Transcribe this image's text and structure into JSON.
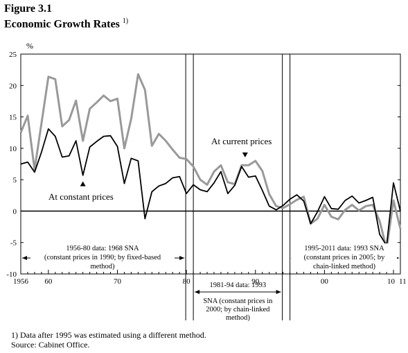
{
  "figure_label": "Figure 3.1",
  "title": "Economic Growth Rates",
  "title_note_marker": "1)",
  "footnote": "1) Data after 1995 was estimated using a different method.",
  "source": "Source:  Cabinet Office.",
  "colors": {
    "constant": "#000000",
    "current": "#999999"
  },
  "chart_data": {
    "type": "line",
    "ylabel": "%",
    "ylim": [
      -10,
      25
    ],
    "xlim": [
      1956,
      2011
    ],
    "y_ticks": [
      25,
      20,
      15,
      10,
      5,
      0,
      -5,
      -10
    ],
    "x_ticks": [
      {
        "year": 1956,
        "label": "1956"
      },
      {
        "year": 1960,
        "label": "60"
      },
      {
        "year": 1970,
        "label": "70"
      },
      {
        "year": 1980,
        "label": "80"
      },
      {
        "year": 1990,
        "label": "90"
      },
      {
        "year": 2000,
        "label": "00"
      },
      {
        "year": 2010,
        "label": "10"
      },
      {
        "year": 2011,
        "label": "11"
      }
    ],
    "x": [
      1956,
      1957,
      1958,
      1959,
      1960,
      1961,
      1962,
      1963,
      1964,
      1965,
      1966,
      1967,
      1968,
      1969,
      1970,
      1971,
      1972,
      1973,
      1974,
      1975,
      1976,
      1977,
      1978,
      1979,
      1980,
      1981,
      1982,
      1983,
      1984,
      1985,
      1986,
      1987,
      1988,
      1989,
      1990,
      1991,
      1992,
      1993,
      1994,
      1995,
      1996,
      1997,
      1998,
      1999,
      2000,
      2001,
      2002,
      2003,
      2004,
      2005,
      2006,
      2007,
      2008,
      2009,
      2010,
      2011
    ],
    "series": [
      {
        "name": "At current prices",
        "color_key": "current",
        "values": [
          12.5,
          15.2,
          6.6,
          14.0,
          21.4,
          21.0,
          13.5,
          14.5,
          17.6,
          11.2,
          16.3,
          17.3,
          18.4,
          17.5,
          17.9,
          10.0,
          14.7,
          21.8,
          19.3,
          10.4,
          12.3,
          11.2,
          9.8,
          8.5,
          8.3,
          7.1,
          5.0,
          4.2,
          6.3,
          7.3,
          4.6,
          4.3,
          7.3,
          7.3,
          8.0,
          6.4,
          2.7,
          0.8,
          0.5,
          1.1,
          1.8,
          2.3,
          -2.0,
          -1.2,
          1.0,
          -0.9,
          -1.3,
          0.2,
          1.0,
          0.1,
          0.8,
          1.0,
          -1.6,
          -6.0,
          1.7,
          -2.8
        ]
      },
      {
        "name": "At constant prices",
        "color_key": "constant",
        "values": [
          7.5,
          7.8,
          6.2,
          9.4,
          13.1,
          11.9,
          8.6,
          8.8,
          11.2,
          5.7,
          10.2,
          11.1,
          11.9,
          12.0,
          10.3,
          4.4,
          8.4,
          8.0,
          -1.2,
          3.1,
          4.0,
          4.4,
          5.3,
          5.5,
          2.8,
          4.2,
          3.4,
          3.1,
          4.5,
          6.3,
          2.8,
          4.1,
          7.1,
          5.4,
          5.6,
          3.3,
          0.8,
          0.2,
          0.9,
          1.9,
          2.6,
          1.6,
          -2.0,
          -0.1,
          2.3,
          0.4,
          0.3,
          1.7,
          2.4,
          1.3,
          1.7,
          2.2,
          -3.7,
          -5.5,
          4.5,
          0.0
        ]
      }
    ],
    "annotations": [
      {
        "text": "At current prices",
        "anchor_year": 1988.5,
        "anchor_value": 8.9,
        "direction": "down"
      },
      {
        "text": "At constant prices",
        "anchor_year": 1965,
        "anchor_value": 4.3,
        "direction": "up"
      }
    ],
    "periods": [
      {
        "lines": [
          "1956-80 data: 1968 SNA",
          "(constant prices in 1990; by fixed-based",
          "method)"
        ]
      },
      {
        "lines": [
          "1981-94 data: 1993",
          "SNA (constant prices in",
          "2000; by chain-linked",
          "method)"
        ]
      },
      {
        "lines": [
          "1995-2011 data: 1993 SNA",
          "(constant prices in 2005; by",
          "chain-linked method)"
        ]
      }
    ]
  }
}
